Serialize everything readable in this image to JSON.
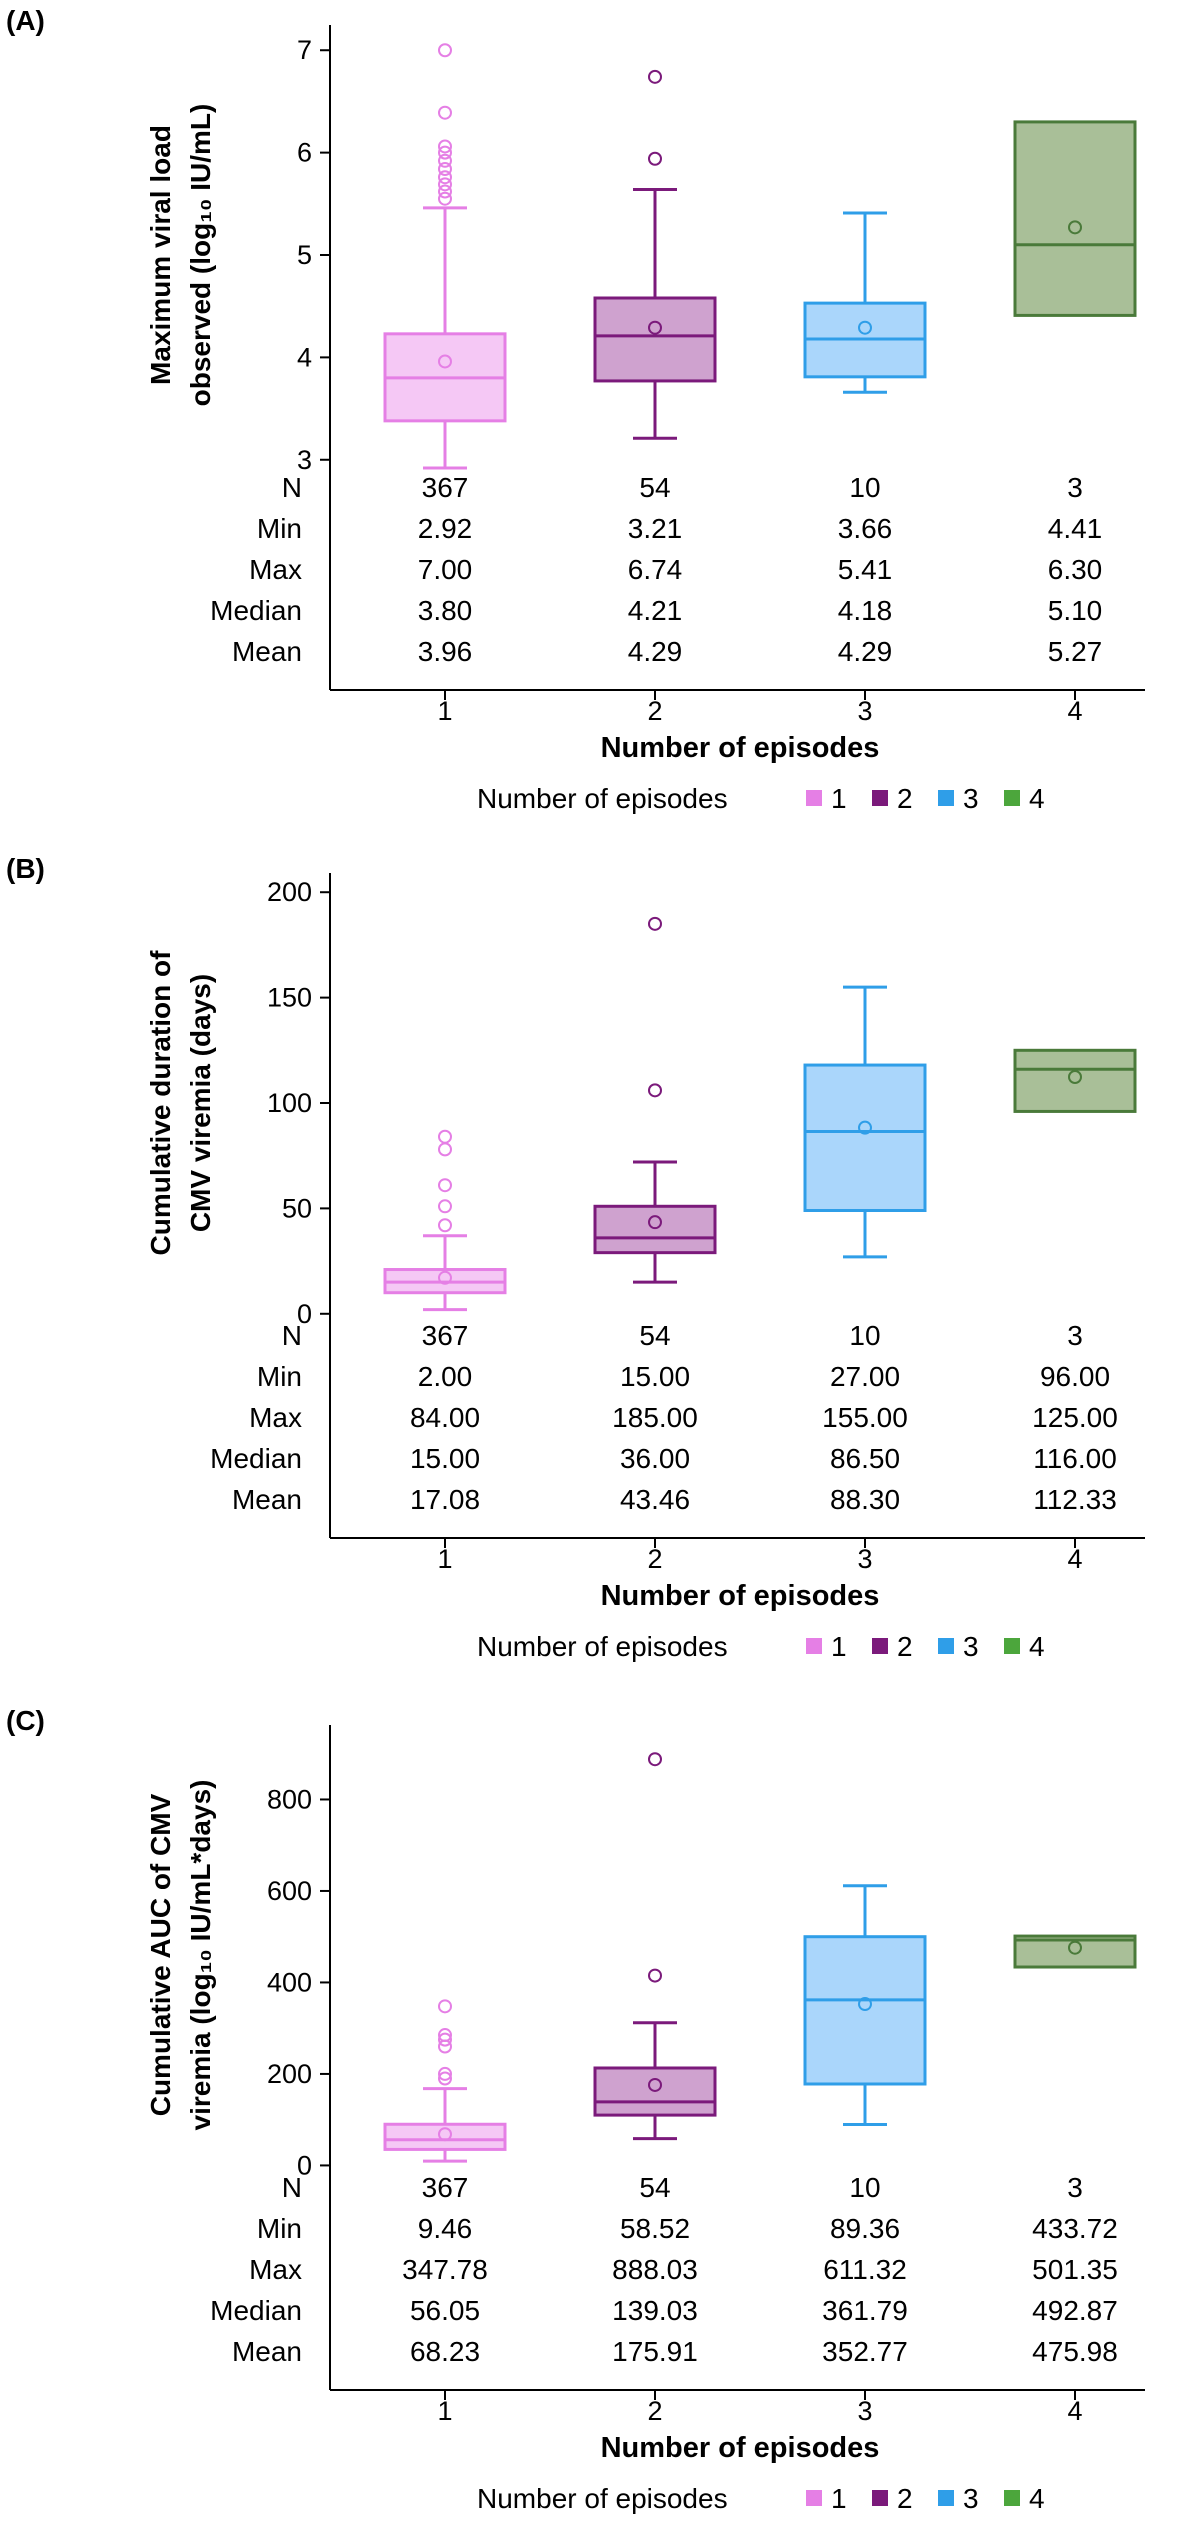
{
  "colors": [
    "#e57fe5",
    "#7b1a7b",
    "#2f9ee8",
    "#4a7a3a"
  ],
  "fills": [
    "#f5c8f5",
    "#cfa2cf",
    "#aad6fb",
    "#a9bf98"
  ],
  "legend_swatch_colors": [
    "#e57fe5",
    "#7b1a7b",
    "#2f9ee8",
    "#4ca63c"
  ],
  "chart_data": [
    {
      "type": "box",
      "panel_label": "(A)",
      "ylabel_lines": [
        "Maximum viral load",
        "observed (log₁₀ IU/mL)"
      ],
      "yticks": [
        3,
        4,
        5,
        6,
        7
      ],
      "ylim": [
        2.9,
        7.1
      ],
      "xlabel": "Number of episodes",
      "categories": [
        "1",
        "2",
        "3",
        "4"
      ],
      "legend": {
        "title": "Number of episodes",
        "entries": [
          "1",
          "2",
          "3",
          "4"
        ]
      },
      "boxes": [
        {
          "q1": 3.38,
          "median": 3.8,
          "q3": 4.23,
          "whisker_low": 2.92,
          "whisker_high": 5.46,
          "mean": 3.96,
          "outliers": [
            5.55,
            5.62,
            5.69,
            5.76,
            5.84,
            5.92,
            6.0,
            6.06,
            6.39,
            7.0
          ]
        },
        {
          "q1": 3.77,
          "median": 4.21,
          "q3": 4.58,
          "whisker_low": 3.21,
          "whisker_high": 5.64,
          "mean": 4.29,
          "outliers": [
            5.94,
            6.74
          ]
        },
        {
          "q1": 3.81,
          "median": 4.18,
          "q3": 4.53,
          "whisker_low": 3.66,
          "whisker_high": 5.41,
          "mean": 4.29,
          "outliers": []
        },
        {
          "q1": 4.41,
          "median": 5.1,
          "q3": 6.3,
          "whisker_low": 4.41,
          "whisker_high": 6.3,
          "mean": 5.27,
          "outliers": []
        }
      ],
      "table": {
        "row_labels": [
          "N",
          "Min",
          "Max",
          "Median",
          "Mean"
        ],
        "rows": [
          [
            "367",
            "54",
            "10",
            "3"
          ],
          [
            "2.92",
            "3.21",
            "3.66",
            "4.41"
          ],
          [
            "7.00",
            "6.74",
            "5.41",
            "6.30"
          ],
          [
            "3.80",
            "4.21",
            "4.18",
            "5.10"
          ],
          [
            "3.96",
            "4.29",
            "4.29",
            "5.27"
          ]
        ]
      }
    },
    {
      "type": "box",
      "panel_label": "(B)",
      "ylabel_lines": [
        "Cumulative duration of",
        "CMV viremia (days)"
      ],
      "yticks": [
        0,
        50,
        100,
        150,
        200
      ],
      "ylim": [
        -2,
        202
      ],
      "xlabel": "Number of episodes",
      "categories": [
        "1",
        "2",
        "3",
        "4"
      ],
      "legend": {
        "title": "Number of episodes",
        "entries": [
          "1",
          "2",
          "3",
          "4"
        ]
      },
      "boxes": [
        {
          "q1": 10,
          "median": 15,
          "q3": 21,
          "whisker_low": 2,
          "whisker_high": 37,
          "mean": 17.08,
          "outliers": [
            42,
            51,
            61,
            78,
            84
          ]
        },
        {
          "q1": 29,
          "median": 36,
          "q3": 51,
          "whisker_low": 15,
          "whisker_high": 72,
          "mean": 43.46,
          "outliers": [
            106,
            185
          ]
        },
        {
          "q1": 49,
          "median": 86.5,
          "q3": 118,
          "whisker_low": 27,
          "whisker_high": 155,
          "mean": 88.3,
          "outliers": []
        },
        {
          "q1": 96,
          "median": 116,
          "q3": 125,
          "whisker_low": 96,
          "whisker_high": 125,
          "mean": 112.33,
          "outliers": []
        }
      ],
      "table": {
        "row_labels": [
          "N",
          "Min",
          "Max",
          "Median",
          "Mean"
        ],
        "rows": [
          [
            "367",
            "54",
            "10",
            "3"
          ],
          [
            "2.00",
            "15.00",
            "27.00",
            "96.00"
          ],
          [
            "84.00",
            "185.00",
            "155.00",
            "125.00"
          ],
          [
            "15.00",
            "36.00",
            "86.50",
            "116.00"
          ],
          [
            "17.08",
            "43.46",
            "88.30",
            "112.33"
          ]
        ]
      }
    },
    {
      "type": "box",
      "panel_label": "(C)",
      "ylabel_lines": [
        "Cumulative AUC of CMV",
        "viremia (log₁₀ IU/mL*days)"
      ],
      "yticks": [
        0,
        200,
        400,
        600,
        800
      ],
      "ylim": [
        -10,
        930
      ],
      "xlabel": "Number of episodes",
      "categories": [
        "1",
        "2",
        "3",
        "4"
      ],
      "legend": {
        "title": "Number of episodes",
        "entries": [
          "1",
          "2",
          "3",
          "4"
        ]
      },
      "boxes": [
        {
          "q1": 35,
          "median": 56.05,
          "q3": 90,
          "whisker_low": 9.46,
          "whisker_high": 168,
          "mean": 68.23,
          "outliers": [
            190,
            200,
            260,
            275,
            285,
            347.78
          ]
        },
        {
          "q1": 110,
          "median": 139.03,
          "q3": 213,
          "whisker_low": 58.52,
          "whisker_high": 312,
          "mean": 175.91,
          "outliers": [
            415,
            888.03
          ]
        },
        {
          "q1": 178,
          "median": 361.79,
          "q3": 500,
          "whisker_low": 89.36,
          "whisker_high": 611.32,
          "mean": 352.77,
          "outliers": []
        },
        {
          "q1": 433.72,
          "median": 492.87,
          "q3": 501.35,
          "whisker_low": 433.72,
          "whisker_high": 501.35,
          "mean": 475.98,
          "outliers": []
        }
      ],
      "table": {
        "row_labels": [
          "N",
          "Min",
          "Max",
          "Median",
          "Mean"
        ],
        "rows": [
          [
            "367",
            "54",
            "10",
            "3"
          ],
          [
            "9.46",
            "58.52",
            "89.36",
            "433.72"
          ],
          [
            "347.78",
            "888.03",
            "611.32",
            "501.35"
          ],
          [
            "56.05",
            "139.03",
            "361.79",
            "492.87"
          ],
          [
            "68.23",
            "175.91",
            "352.77",
            "475.98"
          ]
        ]
      }
    }
  ]
}
